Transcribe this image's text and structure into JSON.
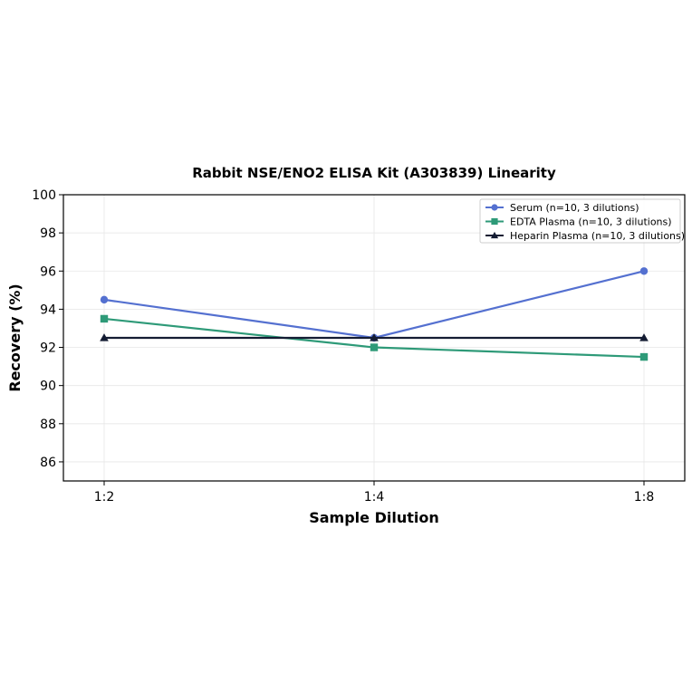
{
  "chart_data": {
    "type": "line",
    "title": "Rabbit NSE/ENO2 ELISA Kit (A303839) Linearity",
    "xlabel": "Sample Dilution",
    "ylabel": "Recovery (%)",
    "categories": [
      "1:2",
      "1:4",
      "1:8"
    ],
    "ylim": [
      85,
      100
    ],
    "yticks": [
      "86",
      "88",
      "90",
      "92",
      "94",
      "96",
      "98",
      "100"
    ],
    "grid": true,
    "legend_position": "top-right",
    "series": [
      {
        "name": "Serum (n=10, 3 dilutions)",
        "values": [
          94.5,
          92.5,
          96.0
        ],
        "color": "#5470d0",
        "marker": "circle"
      },
      {
        "name": "EDTA Plasma (n=10, 3 dilutions)",
        "values": [
          93.5,
          92.0,
          91.5
        ],
        "color": "#2e9a78",
        "marker": "square"
      },
      {
        "name": "Heparin Plasma (n=10, 3 dilutions)",
        "values": [
          92.5,
          92.5,
          92.5
        ],
        "color": "#141c33",
        "marker": "triangle"
      }
    ]
  }
}
